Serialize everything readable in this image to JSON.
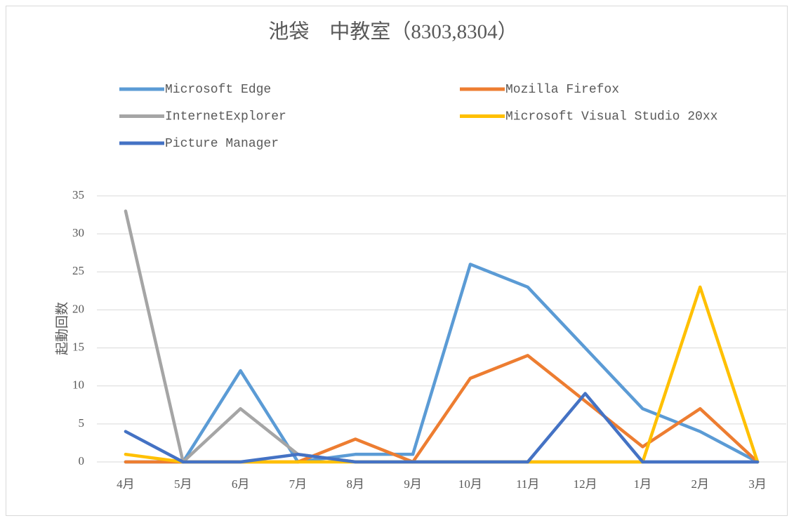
{
  "chart_data": {
    "type": "line",
    "title": "池袋　中教室（8303,8304）",
    "y_label": "起動回数",
    "categories": [
      "4月",
      "5月",
      "6月",
      "7月",
      "8月",
      "9月",
      "10月",
      "11月",
      "12月",
      "1月",
      "2月",
      "3月"
    ],
    "series": [
      {
        "name": "Microsoft Edge",
        "color": "#5b9bd5",
        "values": [
          0,
          0,
          12,
          0,
          1,
          1,
          26,
          23,
          15,
          7,
          4,
          0
        ]
      },
      {
        "name": "Mozilla Firefox",
        "color": "#ed7d31",
        "values": [
          0,
          0,
          0,
          0,
          3,
          0,
          11,
          14,
          8,
          2,
          7,
          0
        ]
      },
      {
        "name": "InternetExplorer",
        "color": "#a5a5a5",
        "values": [
          33,
          0,
          7,
          1,
          0,
          0,
          0,
          0,
          0,
          0,
          0,
          0
        ]
      },
      {
        "name": "Microsoft Visual Studio 20xx",
        "color": "#ffc000",
        "values": [
          1,
          0,
          0,
          0,
          0,
          0,
          0,
          0,
          0,
          0,
          23,
          0
        ]
      },
      {
        "name": "Picture Manager",
        "color": "#4472c4",
        "values": [
          4,
          0,
          0,
          1,
          0,
          0,
          0,
          0,
          9,
          0,
          0,
          0
        ]
      }
    ],
    "ylim": [
      0,
      35
    ],
    "yticks": [
      0,
      5,
      10,
      15,
      20,
      25,
      30,
      35
    ],
    "grid": true
  }
}
